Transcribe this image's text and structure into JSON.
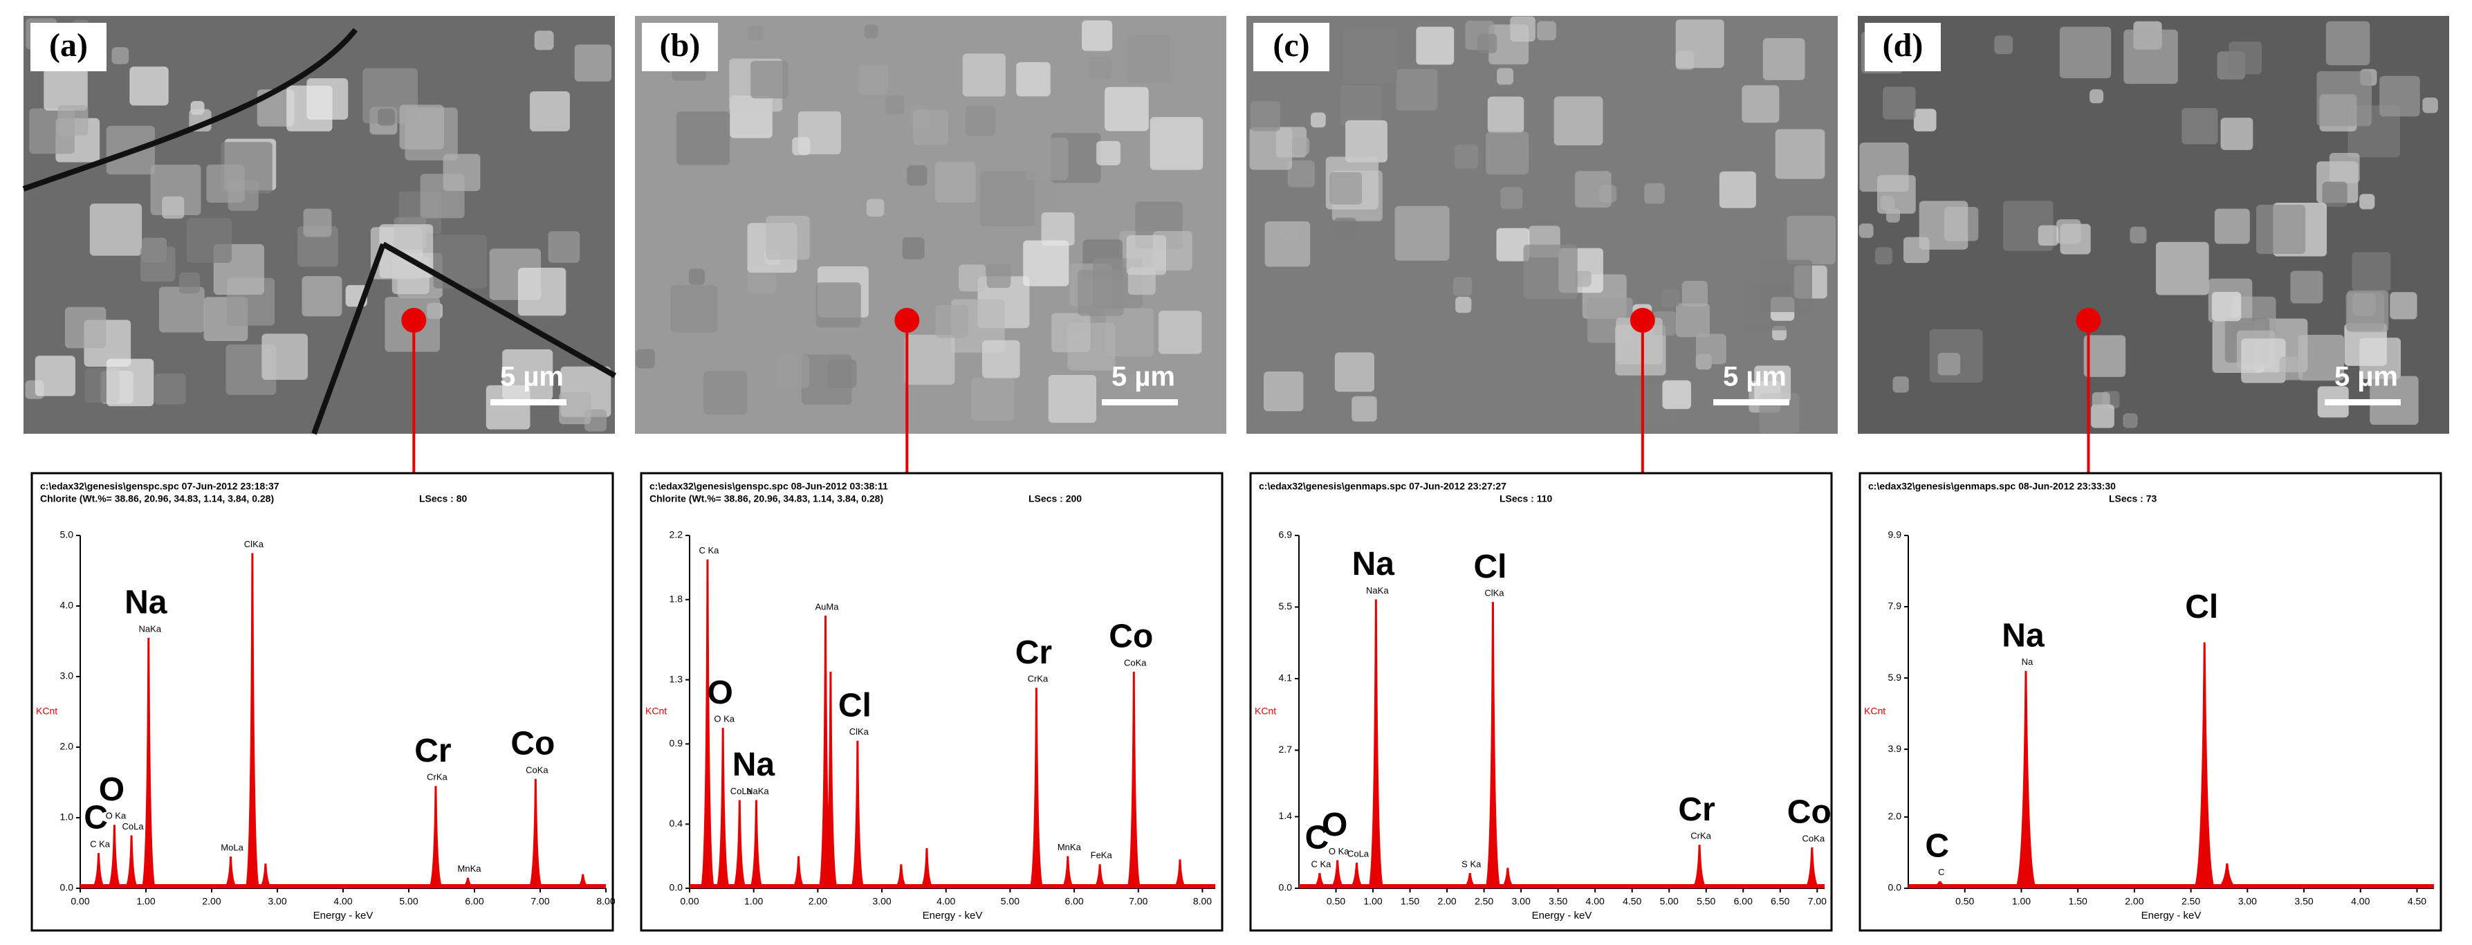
{
  "panels": [
    {
      "label": "(a)",
      "scale": "5 µm"
    },
    {
      "label": "(b)",
      "scale": "5 µm"
    },
    {
      "label": "(c)",
      "scale": "5 µm"
    },
    {
      "label": "(d)",
      "scale": "5 µm"
    }
  ],
  "chart_data": [
    {
      "type": "spectrum",
      "file": "c:\\edax32\\genesis\\genspc.spc  07-Jun-2012 23:18:37",
      "sample": "Chlorite (Wt.%= 38.86, 20.96, 34.83, 1.14, 3.84, 0.28)",
      "lsecs": "LSecs : 80",
      "xlabel": "Energy - keV",
      "ylabel": "KCnt",
      "color": "#e60000",
      "x": [
        0.28,
        0.52,
        0.78,
        1.04,
        2.29,
        2.62,
        2.82,
        5.41,
        5.9,
        6.93,
        7.65
      ],
      "values": [
        0.5,
        0.9,
        0.75,
        3.55,
        0.45,
        4.75,
        0.35,
        1.45,
        0.15,
        1.55,
        0.2
      ],
      "peak_labels": [
        "C Ka",
        "O Ka",
        "CoLa",
        "NaKa",
        "MoLa",
        "ClKa",
        null,
        "CrKa",
        "MnKa",
        "CoKa",
        null
      ],
      "element_labels": [
        "C",
        "O",
        null,
        "Na",
        null,
        null,
        null,
        "Cr",
        null,
        "Co",
        null
      ],
      "xlim": [
        0,
        8
      ],
      "ylim": [
        0,
        5
      ],
      "xticks": [
        {
          "value": 0,
          "label": "0.00"
        },
        {
          "value": 1,
          "label": "1.00"
        },
        {
          "value": 2,
          "label": "2.00"
        },
        {
          "value": 3,
          "label": "3.00"
        },
        {
          "value": 4,
          "label": "4.00"
        },
        {
          "value": 5,
          "label": "5.00"
        },
        {
          "value": 6,
          "label": "6.00"
        },
        {
          "value": 7,
          "label": "7.00"
        },
        {
          "value": 8,
          "label": "8.00"
        }
      ],
      "yticks": [
        {
          "value": 0,
          "label": "0.0"
        },
        {
          "value": 1,
          "label": "1.0"
        },
        {
          "value": 2,
          "label": "2.0"
        },
        {
          "value": 3,
          "label": "3.0"
        },
        {
          "value": 4,
          "label": "4.0"
        },
        {
          "value": 5,
          "label": "5.0"
        }
      ]
    },
    {
      "type": "spectrum",
      "file": "c:\\edax32\\genesis\\genspc.spc  08-Jun-2012 03:38:11",
      "sample": "Chlorite (Wt.%= 38.86, 20.96, 34.83, 1.14, 3.84, 0.28)",
      "lsecs": "LSecs : 200",
      "xlabel": "Energy - keV",
      "ylabel": "KCnt",
      "color": "#e60000",
      "x": [
        0.28,
        0.52,
        0.78,
        1.04,
        1.7,
        2.12,
        2.2,
        2.62,
        3.3,
        3.7,
        5.41,
        5.9,
        6.4,
        6.93,
        7.65
      ],
      "values": [
        2.05,
        1.0,
        0.55,
        0.55,
        0.2,
        1.7,
        1.35,
        0.92,
        0.15,
        0.25,
        1.25,
        0.2,
        0.15,
        1.35,
        0.18
      ],
      "peak_labels": [
        "C Ka",
        "O Ka",
        "CoLa",
        "NaKa",
        null,
        "AuMa",
        null,
        "ClKa",
        null,
        null,
        "CrKa",
        "MnKa",
        "FeKa",
        "CoKa",
        null
      ],
      "element_labels": [
        null,
        "O",
        null,
        "Na",
        null,
        null,
        null,
        "Cl",
        null,
        null,
        "Cr",
        null,
        null,
        "Co",
        null
      ],
      "xlim": [
        0,
        8.2
      ],
      "ylim": [
        0,
        2.2
      ],
      "xticks": [
        {
          "value": 0,
          "label": "0.00"
        },
        {
          "value": 1,
          "label": "1.00"
        },
        {
          "value": 2,
          "label": "2.00"
        },
        {
          "value": 3,
          "label": "3.00"
        },
        {
          "value": 4,
          "label": "4.00"
        },
        {
          "value": 5,
          "label": "5.00"
        },
        {
          "value": 6,
          "label": "6.00"
        },
        {
          "value": 7,
          "label": "7.00"
        },
        {
          "value": 8,
          "label": "8.00"
        }
      ],
      "yticks": [
        {
          "value": 0,
          "label": "0.0"
        },
        0.4,
        0.9,
        1.3,
        1.8,
        2.2
      ]
    },
    {
      "type": "spectrum",
      "file": "c:\\edax32\\genesis\\genmaps.spc  07-Jun-2012 23:27:27",
      "lsecs": "LSecs : 110",
      "xlabel": "Energy - keV",
      "ylabel": "KCnt",
      "color": "#e60000",
      "x": [
        0.28,
        0.52,
        0.78,
        1.04,
        2.31,
        2.62,
        2.82,
        5.41,
        6.93
      ],
      "values": [
        0.3,
        0.55,
        0.5,
        5.65,
        0.3,
        5.6,
        0.4,
        0.85,
        0.8
      ],
      "peak_labels": [
        "C Ka",
        "O Ka",
        "CoLa",
        "NaKa",
        "S Ka",
        "ClKa",
        null,
        "CrKa",
        "CoKa"
      ],
      "element_labels": [
        "C",
        "O",
        null,
        "Na",
        null,
        "Cl",
        null,
        "Cr",
        "Co"
      ],
      "xlim": [
        0,
        7.1
      ],
      "ylim": [
        0,
        6.9
      ],
      "xticks": [
        {
          "value": 0.5,
          "label": "0.50"
        },
        {
          "value": 1,
          "label": "1.00"
        },
        {
          "value": 1.5,
          "label": "1.50"
        },
        {
          "value": 2,
          "label": "2.00"
        },
        {
          "value": 2.5,
          "label": "2.50"
        },
        {
          "value": 3,
          "label": "3.00"
        },
        {
          "value": 3.5,
          "label": "3.50"
        },
        {
          "value": 4,
          "label": "4.00"
        },
        {
          "value": 4.5,
          "label": "4.50"
        },
        {
          "value": 5,
          "label": "5.00"
        },
        {
          "value": 5.5,
          "label": "5.50"
        },
        {
          "value": 6,
          "label": "6.00"
        },
        {
          "value": 6.5,
          "label": "6.50"
        },
        {
          "value": 7,
          "label": "7.00"
        }
      ],
      "yticks": [
        {
          "value": 0,
          "label": "0.0"
        },
        1.4,
        2.7,
        4.1,
        5.5,
        6.9
      ]
    },
    {
      "type": "spectrum",
      "file": "c:\\edax32\\genesis\\genmaps.spc  08-Jun-2012 23:33:30",
      "lsecs": "LSecs : 73",
      "xlabel": "Energy - keV",
      "ylabel": "KCnt",
      "color": "#e60000",
      "x": [
        0.28,
        1.04,
        2.62,
        2.82
      ],
      "values": [
        0.2,
        6.1,
        6.9,
        0.7
      ],
      "peak_labels": [
        "C",
        "Na",
        null,
        null
      ],
      "element_labels": [
        "C",
        "Na",
        "Cl",
        null
      ],
      "xlim": [
        0,
        4.65
      ],
      "ylim": [
        0,
        9.9
      ],
      "xticks": [
        {
          "value": 0.5,
          "label": "0.50"
        },
        {
          "value": 1,
          "label": "1.00"
        },
        {
          "value": 1.5,
          "label": "1.50"
        },
        {
          "value": 2,
          "label": "2.00"
        },
        {
          "value": 2.5,
          "label": "2.50"
        },
        {
          "value": 3,
          "label": "3.00"
        },
        {
          "value": 3.5,
          "label": "3.50"
        },
        {
          "value": 4,
          "label": "4.00"
        },
        {
          "value": 4.5,
          "label": "4.50"
        }
      ],
      "yticks": [
        {
          "value": 0,
          "label": "0.0"
        },
        {
          "value": 2,
          "label": "2.0"
        },
        3.9,
        5.9,
        7.9,
        9.9
      ]
    }
  ]
}
